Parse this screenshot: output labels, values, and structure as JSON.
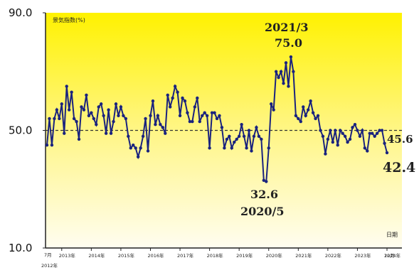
{
  "chart_data": {
    "type": "line",
    "ylabel": "景気指数(%)",
    "xlabel": "日期",
    "ylim": [
      10.0,
      90.0
    ],
    "y_ticks": [
      "10.0",
      "50.0",
      "90.0"
    ],
    "reference_line": 50.0,
    "x_start_label": "7月",
    "x_start_year": "2012年",
    "x_ticks": [
      "2013年",
      "2014年",
      "2015年",
      "2016年",
      "2017年",
      "2018年",
      "2019年",
      "2020年",
      "2021年",
      "2022年",
      "2023年",
      "2024年",
      "12月"
    ],
    "annotations": [
      {
        "value": "75.0",
        "date": "2021/3"
      },
      {
        "value": "32.6",
        "date": "2020/5"
      },
      {
        "value": "45.6"
      },
      {
        "value": "42.4"
      }
    ],
    "colors": {
      "line": "#1a237e",
      "background_top": "#fff200",
      "background_bottom": "#fffde8",
      "reference": "#333333"
    },
    "series": [
      {
        "values": [
          45,
          54,
          45,
          54,
          57,
          54,
          59,
          49,
          65,
          57,
          63,
          54,
          53,
          47,
          58,
          57,
          62,
          55,
          56,
          54,
          52,
          58,
          59,
          55,
          49,
          57,
          49,
          53,
          59,
          55,
          58,
          55,
          54,
          48,
          44,
          45,
          44,
          41,
          44,
          48,
          54,
          43,
          55,
          60,
          52,
          55,
          52,
          51,
          49,
          62,
          58,
          61,
          65,
          63,
          55,
          61,
          60,
          56,
          53,
          53,
          58,
          61,
          53,
          55,
          56,
          55,
          44,
          56,
          56,
          54,
          55,
          51,
          44,
          47,
          48,
          44,
          46,
          47,
          48,
          52,
          48,
          44,
          50,
          43,
          48,
          51,
          48,
          47,
          33,
          32.6,
          44,
          59,
          57,
          70,
          68,
          70,
          66,
          73,
          65,
          75,
          70,
          55,
          54,
          53,
          58,
          55,
          57,
          60,
          56,
          54,
          55,
          50,
          48,
          42,
          47,
          50,
          46,
          50,
          45,
          50,
          49,
          48,
          46,
          47,
          51,
          52,
          50,
          48,
          50,
          44,
          43,
          49,
          49,
          48,
          49,
          50,
          50,
          45.6,
          42.4
        ]
      }
    ]
  }
}
